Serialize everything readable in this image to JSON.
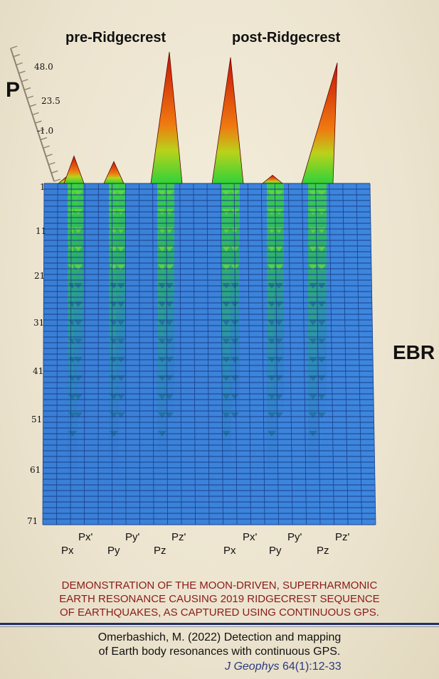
{
  "chart_data": {
    "type": "surface-3d",
    "group_titles": [
      "pre-Ridgecrest",
      "post-Ridgecrest"
    ],
    "z_axis_label": "P",
    "z_ticks": [
      "48.0",
      "23.5",
      "-1.0"
    ],
    "y_axis_label": "EBR",
    "y_ticks": [
      "1",
      "11",
      "21",
      "31",
      "41",
      "51",
      "61",
      "71"
    ],
    "y_range": [
      1,
      71
    ],
    "x_labels": [
      {
        "label": "Px",
        "row": "low"
      },
      {
        "label": "Px'",
        "row": "high"
      },
      {
        "label": "Py",
        "row": "low"
      },
      {
        "label": "Py'",
        "row": "high"
      },
      {
        "label": "Pz",
        "row": "low"
      },
      {
        "label": "Pz'",
        "row": "high"
      },
      {
        "label": "Px",
        "row": "low"
      },
      {
        "label": "Px'",
        "row": "high"
      },
      {
        "label": "Py",
        "row": "low"
      },
      {
        "label": "Py'",
        "row": "high"
      },
      {
        "label": "Pz",
        "row": "low"
      },
      {
        "label": "Pz'",
        "row": "high"
      }
    ],
    "peaks_at_ebr1": [
      {
        "component": "Px",
        "group": "pre-Ridgecrest",
        "value": 3
      },
      {
        "component": "Px'",
        "group": "pre-Ridgecrest",
        "value": 10
      },
      {
        "component": "Py'",
        "group": "pre-Ridgecrest",
        "value": 8
      },
      {
        "component": "Pz'",
        "group": "pre-Ridgecrest",
        "value": 48
      },
      {
        "component": "Px'",
        "group": "post-Ridgecrest",
        "value": 46
      },
      {
        "component": "Py'",
        "group": "post-Ridgecrest",
        "value": 3
      },
      {
        "component": "Pz'",
        "group": "post-Ridgecrest",
        "value": 44
      }
    ],
    "colors": {
      "low": "#2f6fd0",
      "mid": "#36d23a",
      "high": "#d81c10",
      "grid": "#1a3f8a"
    }
  },
  "caption": {
    "line1": "DEMONSTRATION OF THE MOON-DRIVEN, SUPERHARMONIC",
    "line2": "EARTH RESONANCE CAUSING 2019 RIDGECREST SEQUENCE",
    "line3": "OF EARTHQUAKES, AS CAPTURED USING CONTINUOUS GPS."
  },
  "citation": {
    "line1": "Omerbashich, M. (2022) Detection and mapping",
    "line2": "of Earth body resonances with continuous GPS.",
    "journal": "J Geophys",
    "volume": "64(1):12-33"
  }
}
